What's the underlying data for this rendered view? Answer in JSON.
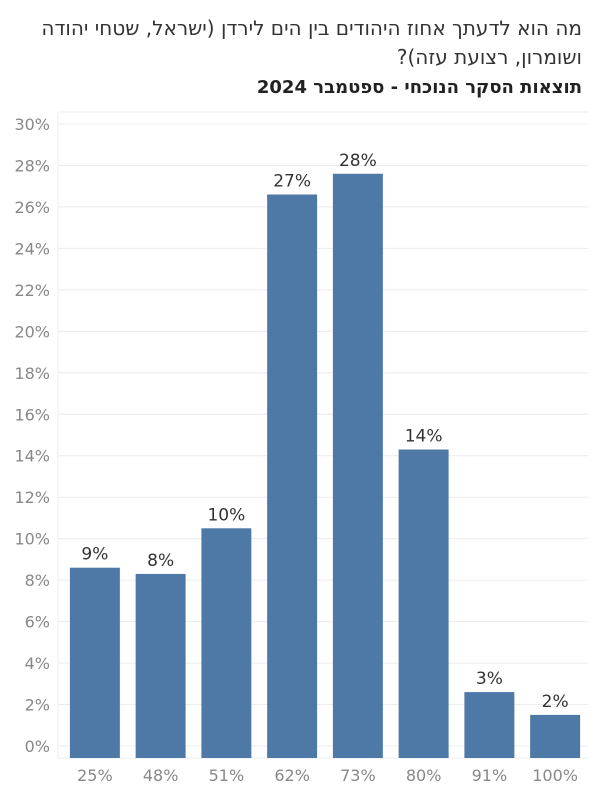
{
  "header": {
    "title": "מה הוא לדעתך אחוז היהודים בין הים לירדן (ישראל, שטחי יהודה ושומרון, רצועת עזה)?",
    "subtitle": "תוצאות הסקר הנוכחי - ספטמבר 2024"
  },
  "colors": {
    "bar": "#4e79a7",
    "grid": "#ececec",
    "axis_text": "#888888",
    "label_text": "#333333"
  },
  "chart_data": {
    "type": "bar",
    "title": "תוצאות הסקר הנוכחי - ספטמבר 2024",
    "categories": [
      "25%",
      "48%",
      "51%",
      "62%",
      "73%",
      "80%",
      "91%",
      "100%"
    ],
    "values": [
      8.6,
      8.3,
      10.5,
      26.6,
      27.6,
      14.3,
      2.6,
      1.5
    ],
    "data_labels": [
      "9%",
      "8%",
      "10%",
      "27%",
      "28%",
      "14%",
      "3%",
      "2%"
    ],
    "ylim": [
      0,
      30
    ],
    "yticks": [
      0,
      2,
      4,
      6,
      8,
      10,
      12,
      14,
      16,
      18,
      20,
      22,
      24,
      26,
      28,
      30
    ],
    "ytick_labels": [
      "0%",
      "2%",
      "4%",
      "6%",
      "8%",
      "10%",
      "12%",
      "14%",
      "16%",
      "18%",
      "20%",
      "22%",
      "24%",
      "26%",
      "28%",
      "30%"
    ],
    "grid": true,
    "xlabel": "",
    "ylabel": ""
  }
}
